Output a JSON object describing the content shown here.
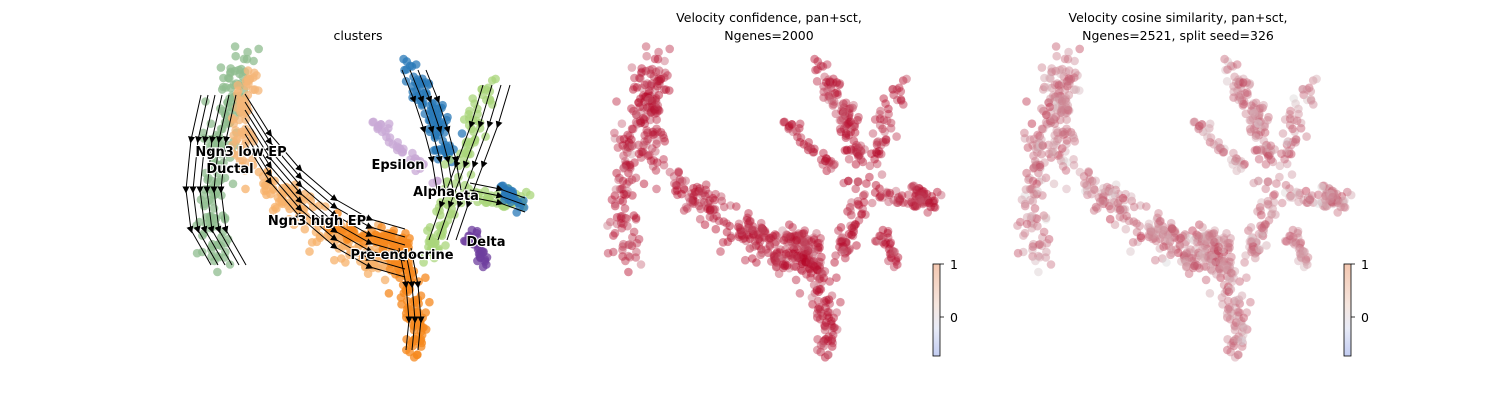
{
  "chart_data": [
    {
      "type": "scatter",
      "subtype": "umap-embedding-with-velocity-streamlines",
      "title": "clusters",
      "axes_visible": false,
      "legend": "on-data",
      "clusters": [
        {
          "name": "Ngn3 low EP",
          "color": "#f4b678"
        },
        {
          "name": "Ductal",
          "color": "#8fbc8f"
        },
        {
          "name": "Ngn3 high EP",
          "color": "#f7b26b"
        },
        {
          "name": "Pre-endocrine",
          "color": "#f5881e"
        },
        {
          "name": "Epsilon",
          "color": "#c8a8d6"
        },
        {
          "name": "Alpha",
          "color": "#2979b8"
        },
        {
          "name": "Beta",
          "label_shown": "eta",
          "color": "#a9d67b"
        },
        {
          "name": "Delta",
          "color": "#6d3d9e"
        }
      ],
      "streamlines": {
        "color": "#000000",
        "arrows": true
      }
    },
    {
      "type": "scatter",
      "subtype": "umap-embedding-continuous",
      "title_line1": "Velocity confidence, pan+sct,",
      "title_line2": "Ngenes=2000",
      "axes_visible": false,
      "colormap": "coolwarm",
      "colorbar": {
        "ticks": [
          "1",
          "0"
        ],
        "range": [
          -0.4,
          1.0
        ]
      },
      "typical_value": 0.9,
      "value_range": [
        0.5,
        1.0
      ]
    },
    {
      "type": "scatter",
      "subtype": "umap-embedding-continuous",
      "title_line1": "Velocity cosine similarity, pan+sct,",
      "title_line2": "Ngenes=2521, split seed=326",
      "axes_visible": false,
      "colormap": "coolwarm",
      "colorbar": {
        "ticks": [
          "1",
          "0"
        ],
        "range": [
          -0.4,
          1.0
        ]
      },
      "typical_value": 0.6,
      "value_range": [
        -0.1,
        0.9
      ]
    }
  ]
}
